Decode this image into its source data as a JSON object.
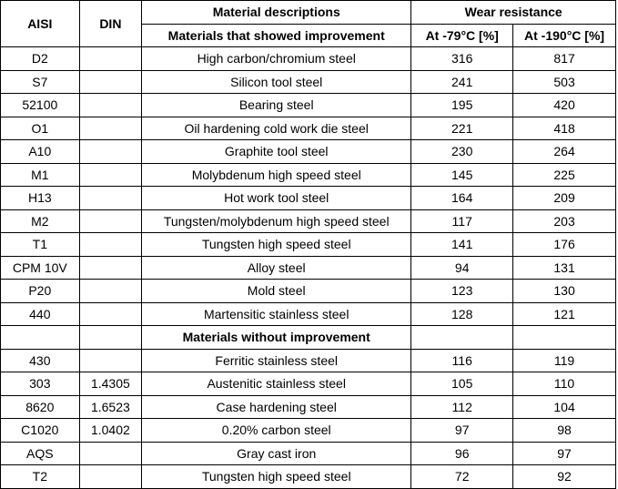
{
  "headers": {
    "aisi": "AISI",
    "din": "DIN",
    "material_descriptions": "Material  descriptions",
    "wear_resistance": "Wear  resistance",
    "materials_improved": "Materials  that showed improvement",
    "at_79": "At -79°C [%]",
    "at_190": "At -190°C [%]",
    "materials_not_improved": "Materials  without  improvement"
  },
  "improved_rows": [
    {
      "aisi": "D2",
      "din": "",
      "desc": "High carbon/chromium steel",
      "w79": "316",
      "w190": "817"
    },
    {
      "aisi": "S7",
      "din": "",
      "desc": "Silicon tool steel",
      "w79": "241",
      "w190": "503"
    },
    {
      "aisi": "52100",
      "din": "",
      "desc": "Bearing steel",
      "w79": "195",
      "w190": "420"
    },
    {
      "aisi": "O1",
      "din": "",
      "desc": "Oil hardening cold work die steel",
      "w79": "221",
      "w190": "418"
    },
    {
      "aisi": "A10",
      "din": "",
      "desc": "Graphite tool steel",
      "w79": "230",
      "w190": "264"
    },
    {
      "aisi": "M1",
      "din": "",
      "desc": "Molybdenum high speed steel",
      "w79": "145",
      "w190": "225"
    },
    {
      "aisi": "H13",
      "din": "",
      "desc": "Hot work tool steel",
      "w79": "164",
      "w190": "209"
    },
    {
      "aisi": "M2",
      "din": "",
      "desc": "Tungsten/molybdenum high speed steel",
      "w79": "117",
      "w190": "203"
    },
    {
      "aisi": "T1",
      "din": "",
      "desc": "Tungsten high speed steel",
      "w79": "141",
      "w190": "176"
    },
    {
      "aisi": "CPM 10V",
      "din": "",
      "desc": "Alloy steel",
      "w79": "94",
      "w190": "131"
    },
    {
      "aisi": "P20",
      "din": "",
      "desc": "Mold steel",
      "w79": "123",
      "w190": "130"
    },
    {
      "aisi": "440",
      "din": "",
      "desc": "Martensitic stainless steel",
      "w79": "128",
      "w190": "121"
    }
  ],
  "not_improved_rows": [
    {
      "aisi": "430",
      "din": "",
      "desc": "Ferritic stainless steel",
      "w79": "116",
      "w190": "119"
    },
    {
      "aisi": "303",
      "din": "1.4305",
      "desc": "Austenitic stainless steel",
      "w79": "105",
      "w190": "110"
    },
    {
      "aisi": "8620",
      "din": "1.6523",
      "desc": "Case hardening steel",
      "w79": "112",
      "w190": "104"
    },
    {
      "aisi": "C1020",
      "din": "1.0402",
      "desc": "0.20% carbon steel",
      "w79": "97",
      "w190": "98"
    },
    {
      "aisi": "AQS",
      "din": "",
      "desc": "Gray cast iron",
      "w79": "96",
      "w190": "97"
    },
    {
      "aisi": "T2",
      "din": "",
      "desc": "Tungsten high speed steel",
      "w79": "72",
      "w190": "92"
    }
  ]
}
